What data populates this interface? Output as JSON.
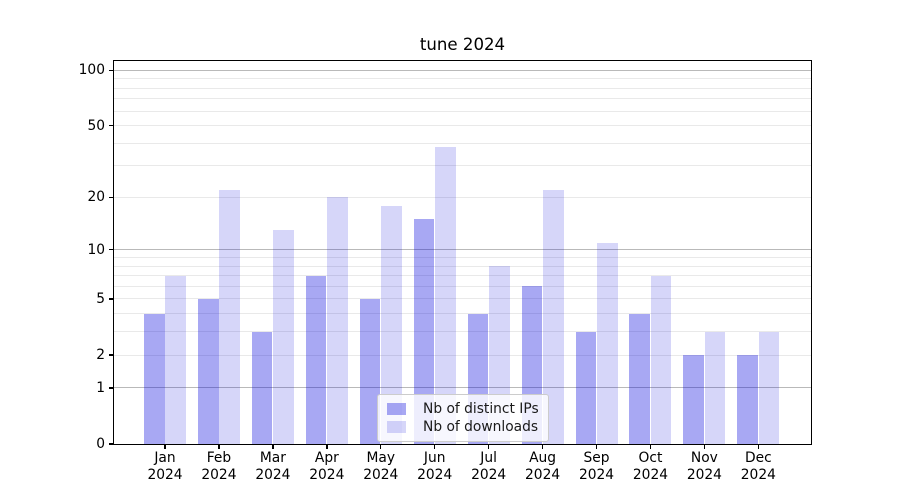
{
  "title": "tune 2024",
  "chart_data": {
    "type": "bar",
    "title": "tune 2024",
    "categories": [
      "Jan 2024",
      "Feb 2024",
      "Mar 2024",
      "Apr 2024",
      "May 2024",
      "Jun 2024",
      "Jul 2024",
      "Aug 2024",
      "Sep 2024",
      "Oct 2024",
      "Nov 2024",
      "Dec 2024"
    ],
    "series": [
      {
        "name": "Nb of distinct IPs",
        "color": "#0000dc",
        "alpha": 0.34,
        "values": [
          4,
          5,
          3,
          7,
          5,
          15,
          4,
          6,
          3,
          4,
          2,
          2
        ]
      },
      {
        "name": "Nb of downloads",
        "color": "#0000dc",
        "alpha": 0.16,
        "values": [
          7,
          22,
          13,
          20,
          18,
          38,
          8,
          22,
          11,
          7,
          3,
          3
        ]
      }
    ],
    "y_axis": {
      "scale": "log1p",
      "tick_values": [
        0,
        1,
        2,
        5,
        10,
        20,
        50,
        100
      ],
      "tick_labels": [
        "0",
        "1",
        "2",
        "5",
        "10",
        "20",
        "50",
        "100"
      ],
      "major_gridlines": [
        1,
        10,
        100
      ],
      "minor_gridlines": [
        2,
        3,
        4,
        5,
        6,
        7,
        8,
        9,
        20,
        30,
        40,
        50,
        60,
        70,
        80,
        90
      ],
      "ylim": [
        0,
        112
      ]
    },
    "xlabel": "",
    "ylabel": "",
    "grid": true,
    "legend": {
      "position": "lower center",
      "entries": [
        "Nb of distinct IPs",
        "Nb of downloads"
      ]
    },
    "colors": {
      "major_grid": "#b9b9b9",
      "minor_grid": "#e9e9e9",
      "spine": "#000000",
      "background": "#ffffff"
    }
  }
}
